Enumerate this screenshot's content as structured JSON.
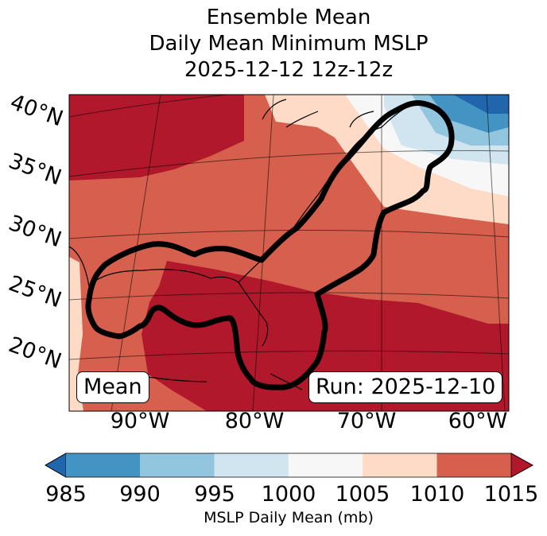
{
  "title": {
    "line1": "Ensemble Mean",
    "line2": "Daily Mean Minimum MSLP",
    "line3": "2025-12-12 12z-12z"
  },
  "map": {
    "lat_labels": [
      "40°N",
      "35°N",
      "30°N",
      "25°N",
      "20°N"
    ],
    "lon_labels": [
      "90°W",
      "80°W",
      "70°W",
      "60°W"
    ],
    "mean_label": "Mean",
    "run_label": "Run: 2025-12-10"
  },
  "colorbar": {
    "ticks": [
      "985",
      "990",
      "995",
      "1000",
      "1005",
      "1010",
      "1015"
    ],
    "label": "MSLP Daily Mean (mb)",
    "colors": [
      "#2166ac",
      "#4393c3",
      "#92c5de",
      "#d1e5f0",
      "#f7f7f7",
      "#fddbc7",
      "#d6604d",
      "#b2182b"
    ]
  }
}
